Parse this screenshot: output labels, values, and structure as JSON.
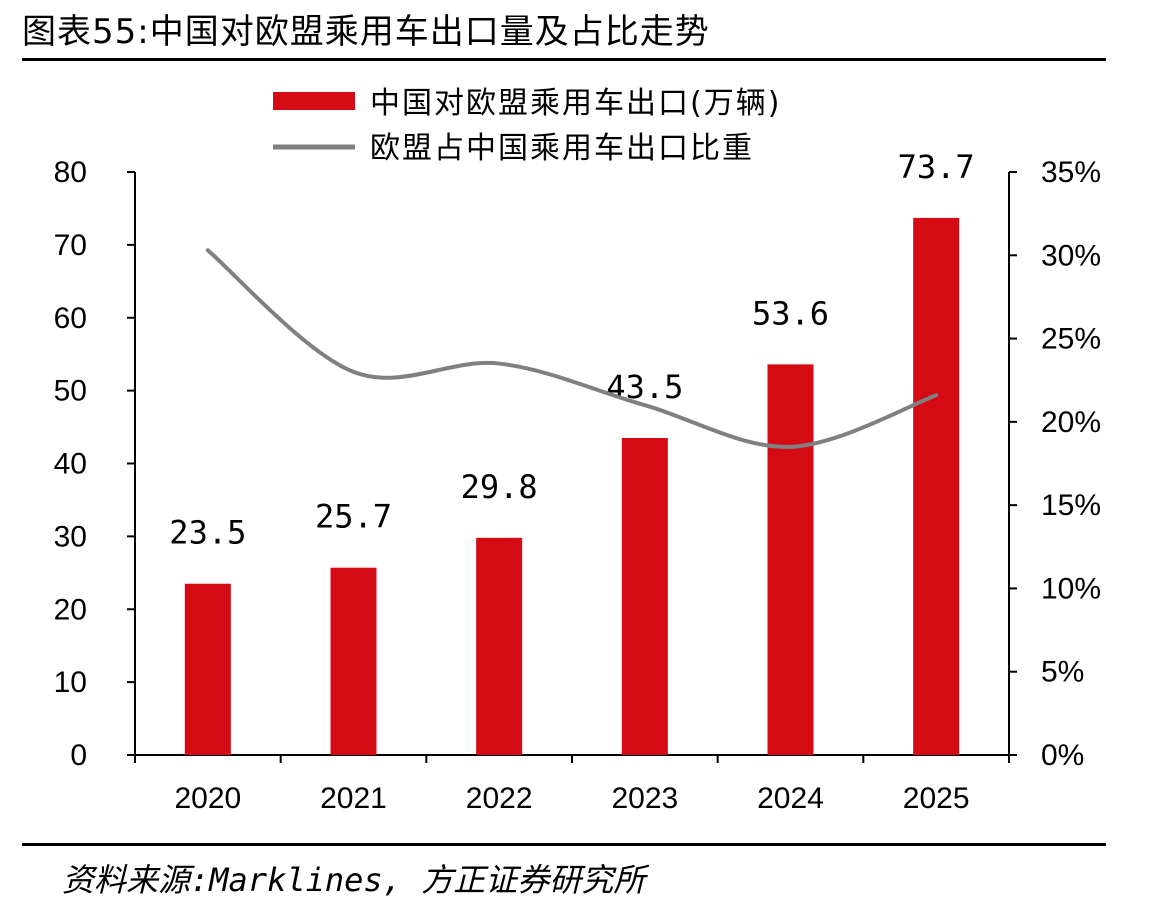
{
  "title": "图表55:中国对欧盟乘用车出口量及占比走势",
  "source": "资料来源:Marklines, 方正证券研究所",
  "colors": {
    "bar": "#d40b14",
    "line": "#808080"
  },
  "chart_data": {
    "type": "bar",
    "categories": [
      "2020",
      "2021",
      "2022",
      "2023",
      "2024",
      "2025"
    ],
    "series": [
      {
        "name": "中国对欧盟乘用车出口(万辆)",
        "type": "bar",
        "axis": "left",
        "values": [
          23.5,
          25.7,
          29.8,
          43.5,
          53.6,
          73.7
        ]
      },
      {
        "name": "欧盟占中国乘用车出口比重",
        "type": "line",
        "axis": "right",
        "values": [
          0.303,
          0.23,
          0.235,
          0.21,
          0.185,
          0.216
        ]
      }
    ],
    "data_labels": [
      "23.5",
      "25.7",
      "29.8",
      "43.5",
      "53.6",
      "73.7"
    ],
    "ylim": [
      0,
      80
    ],
    "yticks": [
      0,
      10,
      20,
      30,
      40,
      50,
      60,
      70,
      80
    ],
    "y2lim": [
      0,
      0.35
    ],
    "y2ticks": [
      "0%",
      "5%",
      "10%",
      "15%",
      "20%",
      "25%",
      "30%",
      "35%"
    ],
    "legend": "top",
    "grid": false
  }
}
